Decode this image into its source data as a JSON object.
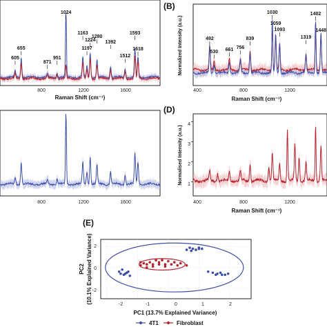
{
  "colors": {
    "blue": "#3d4fa8",
    "blue_band": "#a9b3e2",
    "red": "#b5222c",
    "red_band": "#efb1b5",
    "axis": "#222222"
  },
  "panels": {
    "A": {
      "letter": "",
      "xlabel": "Raman Shift (cm⁻¹)",
      "ylabel": "",
      "xticks": [
        "800",
        "1200",
        "1600"
      ]
    },
    "B": {
      "letter": "(B)",
      "xlabel": "Raman Shift (cm⁻¹)",
      "ylabel": "Normalized Intensity (a.u.)",
      "xticks": [
        "400",
        "800",
        "1200"
      ]
    },
    "C": {
      "letter": "",
      "xticks": [
        "800",
        "1200",
        "1600"
      ]
    },
    "D": {
      "letter": "(D)",
      "xlabel": "Raman Shift (cm⁻¹)",
      "ylabel": "Normalised Intensity (a.u.)",
      "xticks": [
        "400",
        "800",
        "1200"
      ],
      "yticks": [
        "1",
        "2",
        "3",
        "4"
      ]
    },
    "E": {
      "letter": "(E)",
      "xlabel": "PC1 (13.7% Explained Variance)",
      "ylabel_line1": "PC2",
      "ylabel_line2": "(10.1% Explained Variance)",
      "xticks": [
        "-2",
        "-1",
        "0",
        "1",
        "2"
      ],
      "yticks": [
        "-2",
        "0",
        "2"
      ]
    }
  },
  "chart_data": [
    {
      "panel": "A",
      "type": "line",
      "xlim": [
        480,
        1800
      ],
      "title": "",
      "series": [
        {
          "color": "blue"
        },
        {
          "color": "red"
        }
      ],
      "peak_labels": [
        {
          "x": 605,
          "text": "605"
        },
        {
          "x": 655,
          "text": "655"
        },
        {
          "x": 871,
          "text": "871"
        },
        {
          "x": 951,
          "text": "951"
        },
        {
          "x": 1024,
          "text": "1024"
        },
        {
          "x": 1163,
          "text": "1163"
        },
        {
          "x": 1197,
          "text": "1197"
        },
        {
          "x": 1224,
          "text": "1224"
        },
        {
          "x": 1280,
          "text": "1280"
        },
        {
          "x": 1392,
          "text": "1392"
        },
        {
          "x": 1512,
          "text": "1512"
        },
        {
          "x": 1593,
          "text": "1593"
        },
        {
          "x": 1618,
          "text": "1618"
        }
      ]
    },
    {
      "panel": "B",
      "type": "line",
      "xlim": [
        350,
        1500
      ],
      "series": [
        {
          "color": "red"
        },
        {
          "color": "blue"
        }
      ],
      "peak_labels": [
        {
          "x": 492,
          "text": "492"
        },
        {
          "x": 530,
          "text": "530"
        },
        {
          "x": 661,
          "text": "661"
        },
        {
          "x": 756,
          "text": "756"
        },
        {
          "x": 839,
          "text": "839"
        },
        {
          "x": 1030,
          "text": "1030"
        },
        {
          "x": 1059,
          "text": "1059"
        },
        {
          "x": 1093,
          "text": "1093"
        },
        {
          "x": 1319,
          "text": "1319"
        },
        {
          "x": 1402,
          "text": "1402"
        },
        {
          "x": 1448,
          "text": "1448"
        }
      ]
    },
    {
      "panel": "C",
      "type": "line",
      "xlim": [
        480,
        1800
      ],
      "series": [
        {
          "color": "blue"
        }
      ]
    },
    {
      "panel": "D",
      "type": "line",
      "xlim": [
        350,
        1500
      ],
      "ylim": [
        0.3,
        4.4
      ],
      "series": [
        {
          "color": "red"
        }
      ]
    },
    {
      "panel": "E",
      "type": "scatter",
      "xlim": [
        -2.2,
        2.7
      ],
      "ylim": [
        -3.0,
        2.7
      ],
      "legend": [
        {
          "label": "4T1",
          "color": "blue"
        },
        {
          "label": "Fibroblast",
          "color": "red"
        }
      ],
      "series": [
        {
          "name": "4T1",
          "color": "blue",
          "points": [
            [
              0.6,
              1.7
            ],
            [
              0.7,
              1.9
            ],
            [
              0.8,
              1.8
            ],
            [
              0.9,
              1.7
            ],
            [
              1.0,
              1.8
            ],
            [
              1.1,
              1.8
            ],
            [
              1.0,
              1.9
            ],
            [
              0.75,
              1.6
            ],
            [
              -1.6,
              -0.4
            ],
            [
              -1.5,
              -0.2
            ],
            [
              -1.45,
              -0.7
            ],
            [
              -1.35,
              -0.5
            ],
            [
              -1.3,
              -0.4
            ],
            [
              -1.25,
              -0.8
            ],
            [
              -1.4,
              -0.6
            ],
            [
              -1.55,
              -0.6
            ],
            [
              1.3,
              -0.4
            ],
            [
              1.45,
              -0.5
            ],
            [
              1.6,
              -0.6
            ],
            [
              1.75,
              -0.7
            ],
            [
              1.85,
              -0.7
            ],
            [
              1.7,
              -0.5
            ],
            [
              1.95,
              -0.6
            ],
            [
              1.55,
              -0.7
            ]
          ],
          "ellipse": {
            "cx": 0.2,
            "cy": 0.0,
            "rx": 2.25,
            "ry": 2.35
          }
        },
        {
          "name": "Fibroblast",
          "color": "red",
          "points": [
            [
              -0.9,
              0.2
            ],
            [
              -0.7,
              0.3
            ],
            [
              -0.5,
              0.3
            ],
            [
              -0.3,
              0.3
            ],
            [
              -0.1,
              0.3
            ],
            [
              0.1,
              0.3
            ],
            [
              0.3,
              0.2
            ],
            [
              -0.6,
              0.5
            ],
            [
              -0.4,
              0.7
            ],
            [
              -0.2,
              0.7
            ],
            [
              0.0,
              0.6
            ],
            [
              -0.8,
              0.4
            ],
            [
              -0.5,
              0.1
            ],
            [
              -0.1,
              0.1
            ],
            [
              0.2,
              0.5
            ],
            [
              -0.3,
              0.5
            ],
            [
              -0.7,
              0.0
            ],
            [
              0.4,
              0.4
            ],
            [
              0.6,
              0.2
            ],
            [
              -0.9,
              0.5
            ]
          ],
          "ellipse": {
            "cx": -0.2,
            "cy": 0.3,
            "rx": 0.75,
            "ry": 0.55
          }
        }
      ]
    }
  ]
}
